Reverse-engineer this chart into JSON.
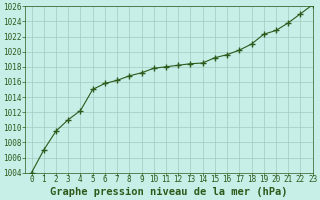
{
  "x": [
    0,
    1,
    2,
    3,
    4,
    5,
    6,
    7,
    8,
    9,
    10,
    11,
    12,
    13,
    14,
    15,
    16,
    17,
    18,
    19,
    20,
    21,
    22,
    23
  ],
  "y": [
    1004.0,
    1007.0,
    1009.5,
    1011.0,
    1012.2,
    1015.0,
    1015.8,
    1016.2,
    1016.8,
    1017.2,
    1017.8,
    1018.0,
    1018.2,
    1018.4,
    1018.5,
    1019.2,
    1019.6,
    1020.2,
    1021.0,
    1022.3,
    1022.8,
    1023.8,
    1025.0,
    1026.2
  ],
  "ylim": [
    1004,
    1026
  ],
  "xlim": [
    -0.5,
    23
  ],
  "yticks": [
    1004,
    1006,
    1008,
    1010,
    1012,
    1014,
    1016,
    1018,
    1020,
    1022,
    1024,
    1026
  ],
  "xticks": [
    0,
    1,
    2,
    3,
    4,
    5,
    6,
    7,
    8,
    9,
    10,
    11,
    12,
    13,
    14,
    15,
    16,
    17,
    18,
    19,
    20,
    21,
    22,
    23
  ],
  "line_color": "#2d5a1b",
  "marker": "+",
  "marker_size": 4,
  "bg_color": "#c8eee8",
  "grid_color": "#a0ccc0",
  "xlabel": "Graphe pression niveau de la mer (hPa)",
  "tick_label_color": "#2d5a1b",
  "xlabel_fontsize": 7.5,
  "tick_fontsize": 5.5,
  "fig_width": 3.2,
  "fig_height": 2.0,
  "dpi": 100
}
